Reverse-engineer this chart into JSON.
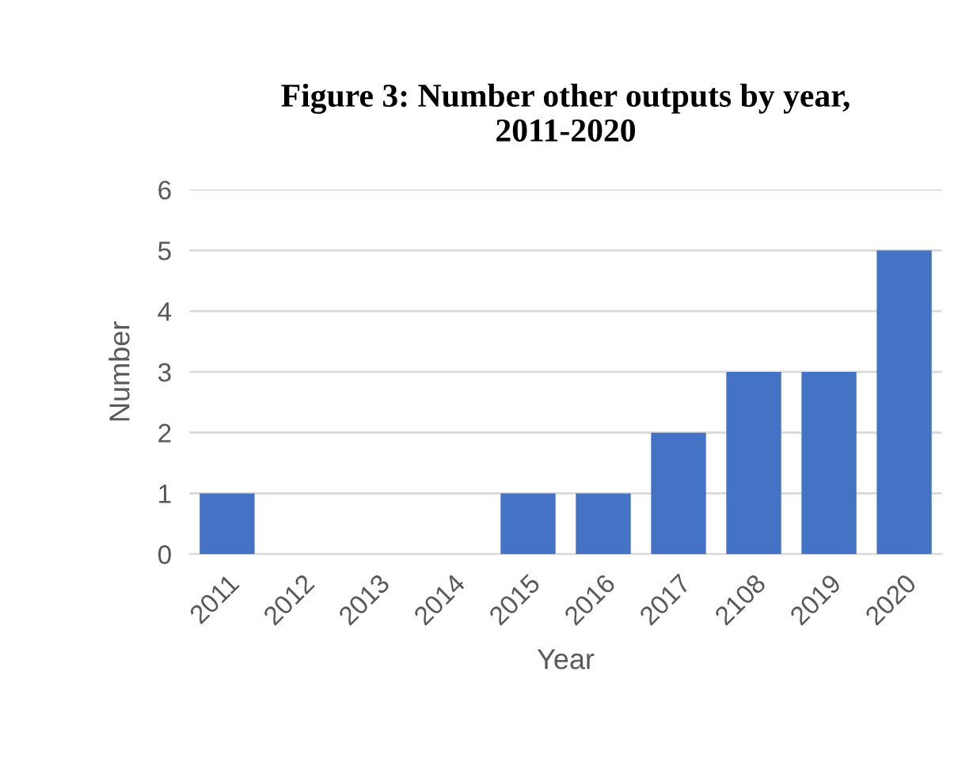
{
  "chart_data": {
    "type": "bar",
    "title": "Figure 3: Number other outputs by year,\n2011-2020",
    "xlabel": "Year",
    "ylabel": "Number",
    "categories": [
      "2011",
      "2012",
      "2013",
      "2014",
      "2015",
      "2016",
      "2017",
      "2108",
      "2019",
      "2020"
    ],
    "values": [
      1,
      0,
      0,
      0,
      1,
      1,
      2,
      3,
      3,
      5
    ],
    "color": "#4472c4",
    "ylim": [
      0,
      6
    ],
    "yticks": [
      0,
      1,
      2,
      3,
      4,
      5,
      6
    ],
    "grid": "y"
  }
}
